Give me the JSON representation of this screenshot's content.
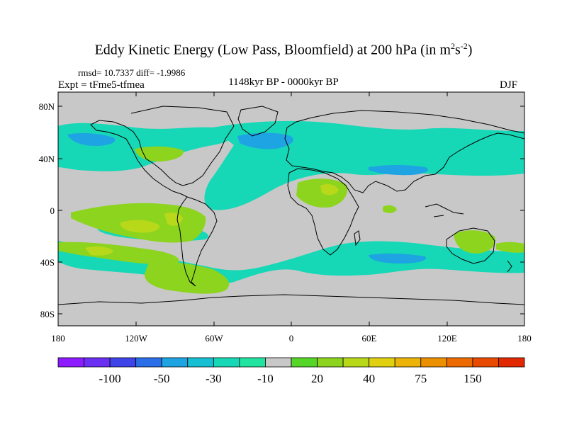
{
  "title": {
    "main": "Eddy Kinetic Energy (Low Pass, Bloomfield) at 200 hPa (in m",
    "exp1": "2",
    "mid": "s",
    "exp2": "-2",
    "close": ")"
  },
  "stats_line": "rmsd= 10.7337 diff= -1.9986",
  "experiment_label": "Expt = tFme5-tfmea",
  "period_label": "1148kyr BP - 0000kyr BP",
  "season_label": "DJF",
  "axes": {
    "lat_labels": [
      "80N",
      "40N",
      "0",
      "40S",
      "80S"
    ],
    "lon_labels": [
      "180",
      "120W",
      "60W",
      "0",
      "60E",
      "120E",
      "180"
    ]
  },
  "colorbar": {
    "colors": [
      "#8c1cff",
      "#6a2ff2",
      "#3f44e8",
      "#2a6ee8",
      "#1ea4e2",
      "#16c0d2",
      "#16d8b6",
      "#20e4a0",
      "#c8c8c8",
      "#55d628",
      "#8cd41e",
      "#b8d81a",
      "#e0d010",
      "#ecb408",
      "#ec9000",
      "#ec6a00",
      "#e84a00",
      "#e22800"
    ],
    "labels": [
      "-100",
      "-50",
      "-30",
      "-10",
      "20",
      "40",
      "75",
      "150"
    ]
  },
  "map_colors": {
    "land_sea_background": "#c8c8c8",
    "negative_band": "#16d8b6",
    "negative_core": "#1ea4e2",
    "positive_band": "#8cd41e",
    "positive_core": "#b8d81a"
  }
}
